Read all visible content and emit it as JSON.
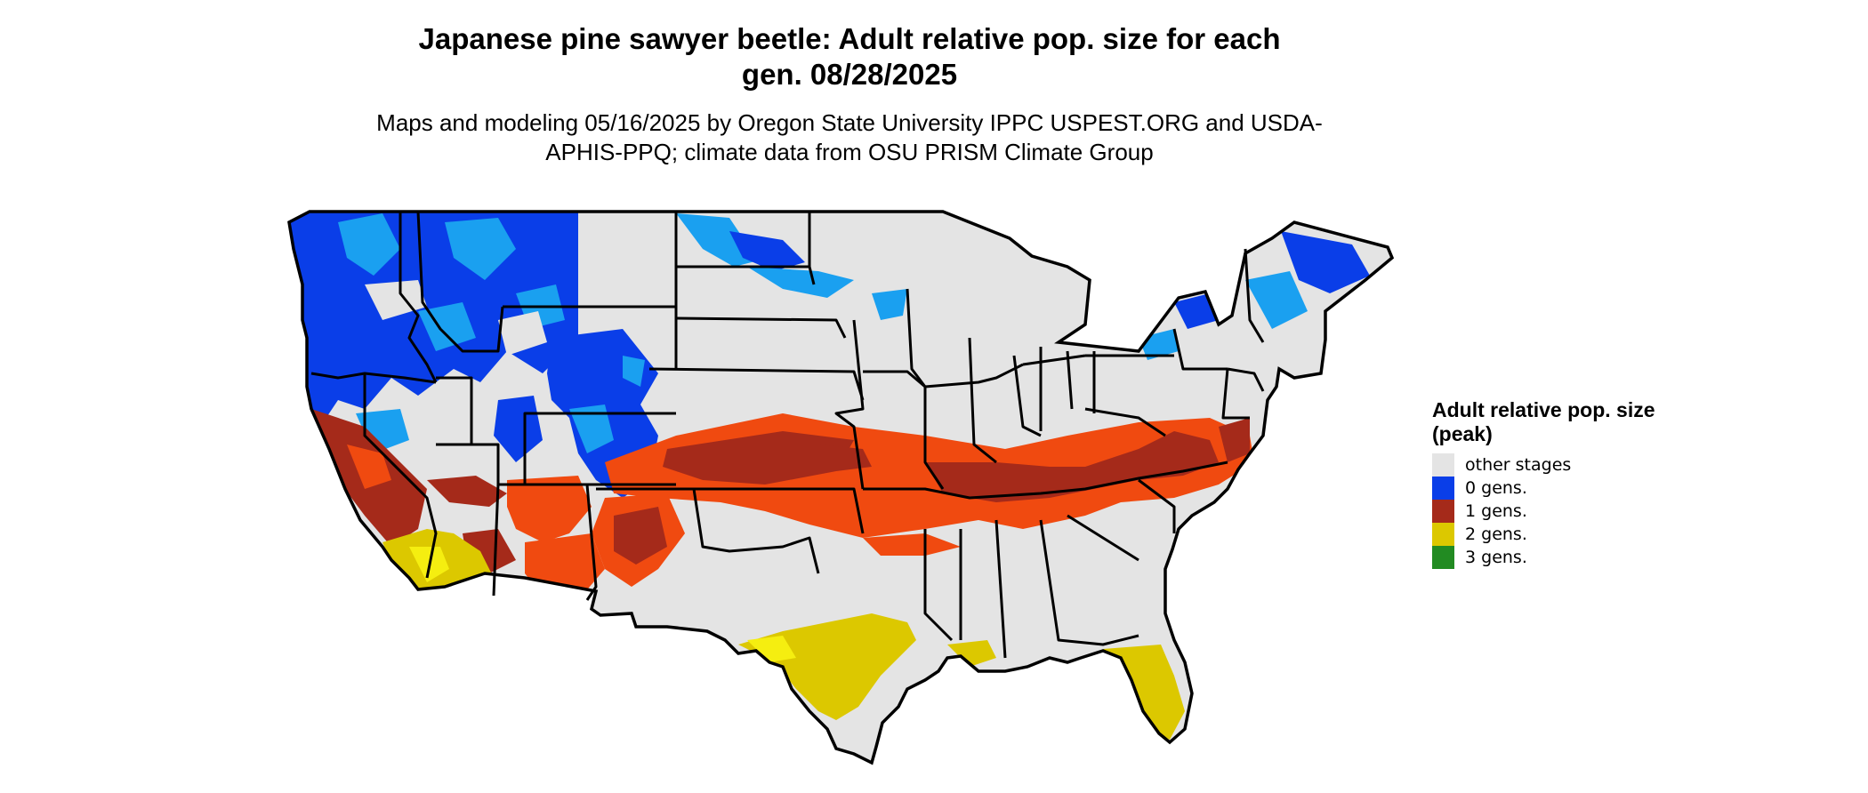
{
  "title": "Japanese pine sawyer beetle: Adult relative pop. size for each gen. 08/28/2025",
  "subtitle": "Maps and modeling 05/16/2025 by Oregon State University IPPC USPEST.ORG and USDA-APHIS-PPQ; climate data from OSU PRISM Climate Group",
  "legend": {
    "title": "Adult relative pop. size (peak)",
    "items": [
      {
        "label": "other stages",
        "color": "#e4e4e4"
      },
      {
        "label": "0 gens.",
        "color": "#0a3ee8"
      },
      {
        "label": "1 gens.",
        "color": "#a52a1a"
      },
      {
        "label": "2 gens.",
        "color": "#dcc800"
      },
      {
        "label": "3 gens.",
        "color": "#228b22"
      }
    ]
  },
  "map": {
    "region": "Contiguous United States",
    "colors": {
      "other_stages": "#e4e4e4",
      "zero_gens_dark": "#0a3ee8",
      "zero_gens_light": "#1aa0f0",
      "one_gen_dark": "#a52a1a",
      "one_gen_light": "#f04a10",
      "two_gens": "#dcc800",
      "two_gens_bright": "#f5ee10",
      "border": "#000000"
    }
  }
}
